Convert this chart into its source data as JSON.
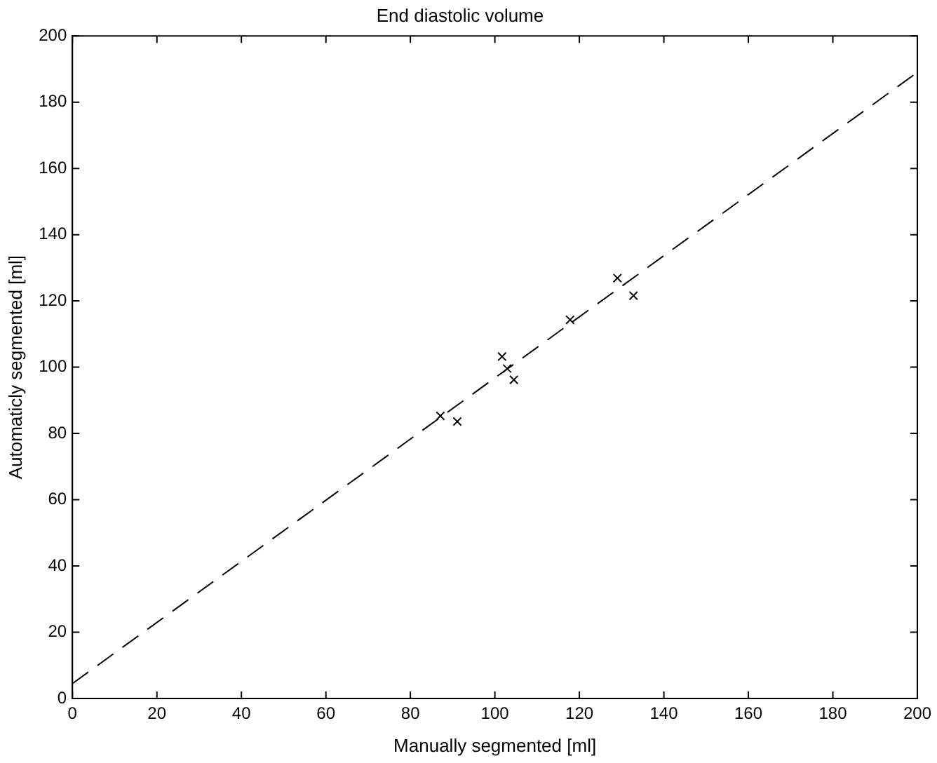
{
  "chart_data": {
    "type": "scatter",
    "title": "End diastolic volume",
    "xlabel": "Manually segmented [ml]",
    "ylabel": "Automaticly segmented [ml]",
    "xlim": [
      0,
      200
    ],
    "ylim": [
      0,
      200
    ],
    "xticks": [
      0,
      20,
      40,
      60,
      80,
      100,
      120,
      140,
      160,
      180,
      200
    ],
    "yticks": [
      0,
      20,
      40,
      60,
      80,
      100,
      120,
      140,
      160,
      180,
      200
    ],
    "grid": false,
    "legend": false,
    "series": [
      {
        "color": "#000000",
        "marker": "cross",
        "x": [
          87.1,
          91.1,
          101.7,
          102.9,
          104.5,
          117.8,
          129,
          132.8
        ],
        "values": [
          85.3,
          83.6,
          103.2,
          99.6,
          96.2,
          114.3,
          126.9,
          121.6
        ]
      },
      {
        "type": "line",
        "color": "#000000",
        "line_style": "dashed",
        "marker": "none",
        "x": [
          0,
          200
        ],
        "values": [
          4.5,
          189
        ]
      }
    ]
  }
}
